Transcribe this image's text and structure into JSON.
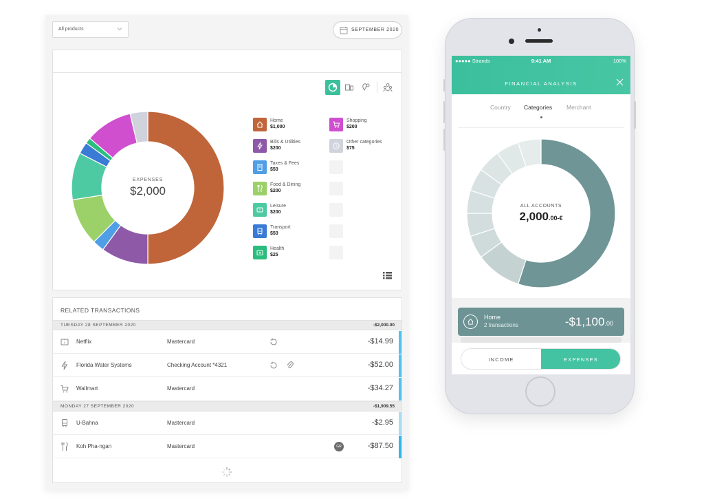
{
  "desktop": {
    "product_select": "All products",
    "date": "SEPTEMBER 2020",
    "donut": {
      "label": "EXPENSES",
      "total": "$2,000",
      "segments": [
        {
          "name": "Home",
          "value": 1000,
          "color": "#c0653a"
        },
        {
          "name": "Bills & Utilities",
          "value": 200,
          "color": "#8e5aa8"
        },
        {
          "name": "Taxes & Fees",
          "value": 50,
          "color": "#4f9ee6"
        },
        {
          "name": "Food & Dining",
          "value": 200,
          "color": "#9cd068"
        },
        {
          "name": "Leisure",
          "value": 200,
          "color": "#4ecaa2"
        },
        {
          "name": "Transport",
          "value": 50,
          "color": "#3a7bd5"
        },
        {
          "name": "Health",
          "value": 25,
          "color": "#2bbd7e"
        },
        {
          "name": "Shopping",
          "value": 200,
          "color": "#cf4fcf"
        },
        {
          "name": "Other categories",
          "value": 75,
          "color": "#d0d3dc"
        }
      ]
    },
    "legend": [
      {
        "name": "Home",
        "amount": "$1,000",
        "color": "#c0653a",
        "icon": "house-icon"
      },
      {
        "name": "Bills & Utilities",
        "amount": "$200",
        "color": "#8e5aa8",
        "icon": "bolt-icon"
      },
      {
        "name": "Taxes & Fees",
        "amount": "$50",
        "color": "#4f9ee6",
        "icon": "receipt-icon"
      },
      {
        "name": "Food & Dining",
        "amount": "$200",
        "color": "#9cd068",
        "icon": "fork-knife-icon"
      },
      {
        "name": "Leisure",
        "amount": "$200",
        "color": "#4ecaa2",
        "icon": "ticket-icon"
      },
      {
        "name": "Transport",
        "amount": "$50",
        "color": "#3a7bd5",
        "icon": "bus-icon"
      },
      {
        "name": "Health",
        "amount": "$25",
        "color": "#2bbd7e",
        "icon": "medkit-icon"
      },
      {
        "name": "Shopping",
        "amount": "$200",
        "color": "#cf4fcf",
        "icon": "cart-icon"
      },
      {
        "name": "Other categories",
        "amount": "$75",
        "color": "#d0d3dc",
        "icon": "clock-icon"
      }
    ],
    "transactions": {
      "title": "RELATED TRANSACTIONS",
      "days": [
        {
          "date": "TUESDAY 28 SEPTEMBER 2020",
          "total": "-$2,000.00"
        },
        {
          "date": "MONDAY 27 SEPTEMBER 2020",
          "total": "-$1,909.55"
        }
      ],
      "rows": [
        {
          "merchant": "Netflix",
          "account": "Mastercard",
          "amount": "-$14.99",
          "icon": "ticket-icon",
          "stripe": "#4fc3ef"
        },
        {
          "merchant": "Florida Water Systems",
          "account": "Checking Account *4321",
          "amount": "-$52.00",
          "icon": "bolt-icon",
          "stripe": "#4fc3ef"
        },
        {
          "merchant": "Wallmart",
          "account": "Mastercard",
          "amount": "-$34.27",
          "icon": "cart-icon",
          "stripe": "#4fc3ef"
        },
        {
          "merchant": "U-Bahna",
          "account": "Mastercard",
          "amount": "-$2.95",
          "icon": "bus-icon",
          "stripe": "#a9dcf3"
        },
        {
          "merchant": "Koh Pha-ngan",
          "account": "Mastercard",
          "amount": "-$87.50",
          "icon": "fork-knife-icon",
          "stripe": "#2fb8ee",
          "badge": "GR"
        }
      ]
    }
  },
  "phone": {
    "carrier": "●●●●● Strands",
    "time": "9:41 AM",
    "battery": "100%",
    "title": "FINANCIAL ANALYSIS",
    "tabs": [
      "Country",
      "Categories",
      "Merchant"
    ],
    "active_tab": "Categories",
    "donut": {
      "label": "ALL ACCOUNTS",
      "value_main": "2,000",
      "value_suffix": ".00-€",
      "segments": [
        {
          "value": 55,
          "color": "#6f9596"
        },
        {
          "value": 10,
          "color": "#c5d2d2"
        },
        {
          "value": 5,
          "color": "#cfdada"
        },
        {
          "value": 5,
          "color": "#d3dddd"
        },
        {
          "value": 5,
          "color": "#d6e0e0"
        },
        {
          "value": 5,
          "color": "#d9e2e2"
        },
        {
          "value": 5,
          "color": "#dce4e4"
        },
        {
          "value": 5,
          "color": "#e1e8e8"
        },
        {
          "value": 5,
          "color": "#e6ecec"
        }
      ]
    },
    "card": {
      "name": "Home",
      "sub": "2 transactions",
      "amount_main": "-$1,100",
      "amount_suffix": ".00",
      "icon": "house-icon"
    },
    "toggle": {
      "income": "INCOME",
      "expenses": "EXPENSES"
    }
  }
}
